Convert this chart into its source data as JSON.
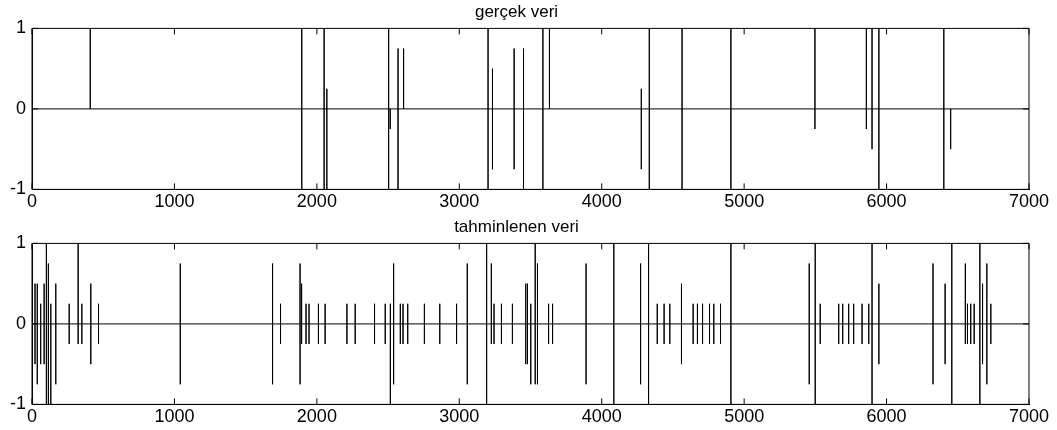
{
  "chart_data": [
    {
      "type": "line",
      "title": "gerçek veri",
      "color": "#000000",
      "marker": "none",
      "line_style": "solid",
      "grid": false,
      "xlim": [
        0,
        7000
      ],
      "xticks": [
        0,
        1000,
        2000,
        3000,
        4000,
        5000,
        6000,
        7000
      ],
      "ylim": [
        -1,
        1
      ],
      "yticks": [
        -1,
        0,
        1
      ],
      "x": [
        0,
        409,
        409,
        409,
        1894,
        1894,
        1894,
        1894,
        2051,
        2051,
        2051,
        2051,
        2070,
        2070,
        2070,
        2070,
        2504,
        2504,
        2504,
        2504,
        2515,
        2515,
        2515,
        2570,
        2570,
        2570,
        2570,
        2609,
        2609,
        2609,
        3202,
        3202,
        3202,
        3202,
        3233,
        3233,
        3233,
        3233,
        3385,
        3385,
        3385,
        3385,
        3451,
        3451,
        3451,
        3451,
        3587,
        3587,
        3587,
        3587,
        3633,
        3633,
        3633,
        4278,
        4278,
        4278,
        4278,
        4334,
        4334,
        4334,
        4334,
        4564,
        4564,
        4564,
        4564,
        4907,
        4907,
        4907,
        4907,
        5497,
        5497,
        5497,
        5497,
        5858,
        5858,
        5858,
        5858,
        5898,
        5898,
        5898,
        5898,
        5946,
        5946,
        5946,
        5946,
        6402,
        6402,
        6402,
        6402,
        6450,
        6450,
        6450,
        7000
      ],
      "values": [
        0,
        0,
        1,
        0,
        0,
        1,
        -1,
        0,
        0,
        1,
        -1,
        0,
        0,
        0.25,
        -1,
        0,
        0,
        1,
        -1,
        0,
        0,
        -0.25,
        0,
        0,
        0.75,
        -1,
        0,
        0,
        0.75,
        0,
        0,
        1,
        -1,
        0,
        0,
        0.5,
        -0.75,
        0,
        0,
        0.75,
        -0.75,
        0,
        0,
        0.75,
        -1,
        0,
        0,
        1,
        -1,
        0,
        0,
        1,
        0,
        0,
        0.25,
        -0.75,
        0,
        0,
        1,
        -1,
        0,
        0,
        1,
        -1,
        0,
        0,
        1,
        -1,
        0,
        0,
        1,
        -0.25,
        0,
        0,
        1,
        -0.25,
        0,
        0,
        1,
        -0.5,
        0,
        0,
        1,
        -1,
        0,
        0,
        1,
        -1,
        0,
        0,
        -0.5,
        0,
        0
      ]
    },
    {
      "type": "line",
      "title": "tahminlenen veri",
      "color": "#000000",
      "marker": "none",
      "line_style": "solid",
      "grid": false,
      "xlim": [
        0,
        7000
      ],
      "xticks": [
        0,
        1000,
        2000,
        3000,
        4000,
        5000,
        6000,
        7000
      ],
      "ylim": [
        -1,
        1
      ],
      "yticks": [
        -1,
        0,
        1
      ],
      "x": [
        0,
        2,
        2,
        2,
        2,
        21,
        21,
        21,
        21,
        37,
        37,
        37,
        37,
        61,
        61,
        61,
        61,
        85,
        85,
        85,
        85,
        101,
        101,
        101,
        101,
        115,
        115,
        115,
        115,
        132,
        132,
        132,
        132,
        167,
        167,
        167,
        167,
        261,
        261,
        261,
        261,
        324,
        324,
        324,
        324,
        350,
        350,
        350,
        350,
        413,
        413,
        413,
        413,
        467,
        467,
        467,
        467,
        1041,
        1041,
        1041,
        1041,
        1689,
        1689,
        1689,
        1689,
        1745,
        1745,
        1745,
        1745,
        1882,
        1882,
        1882,
        1882,
        1893,
        1893,
        1893,
        1893,
        1924,
        1924,
        1924,
        1924,
        1945,
        1945,
        1945,
        1945,
        2011,
        2011,
        2011,
        2011,
        2058,
        2058,
        2058,
        2058,
        2211,
        2211,
        2211,
        2211,
        2269,
        2269,
        2269,
        2269,
        2405,
        2405,
        2405,
        2405,
        2480,
        2480,
        2480,
        2480,
        2516,
        2516,
        2516,
        2516,
        2539,
        2539,
        2539,
        2539,
        2586,
        2586,
        2586,
        2586,
        2605,
        2605,
        2605,
        2605,
        2638,
        2638,
        2638,
        2638,
        2755,
        2755,
        2755,
        2755,
        2863,
        2863,
        2863,
        2863,
        2981,
        2981,
        2981,
        2981,
        3056,
        3056,
        3056,
        3056,
        3192,
        3192,
        3192,
        3192,
        3225,
        3225,
        3225,
        3225,
        3244,
        3244,
        3244,
        3244,
        3296,
        3296,
        3296,
        3296,
        3373,
        3373,
        3373,
        3373,
        3467,
        3467,
        3467,
        3467,
        3479,
        3479,
        3479,
        3479,
        3502,
        3502,
        3502,
        3502,
        3533,
        3533,
        3533,
        3533,
        3549,
        3549,
        3549,
        3549,
        3627,
        3627,
        3627,
        3627,
        3655,
        3655,
        3655,
        3655,
        3890,
        3890,
        3890,
        3890,
        4085,
        4085,
        4085,
        4085,
        4273,
        4273,
        4273,
        4273,
        4329,
        4329,
        4329,
        4329,
        4390,
        4390,
        4390,
        4390,
        4438,
        4438,
        4438,
        4438,
        4478,
        4478,
        4478,
        4478,
        4560,
        4560,
        4560,
        4560,
        4642,
        4642,
        4642,
        4642,
        4672,
        4672,
        4672,
        4672,
        4708,
        4708,
        4708,
        4708,
        4757,
        4757,
        4757,
        4757,
        4787,
        4787,
        4787,
        4787,
        4834,
        4834,
        4834,
        4834,
        4907,
        4907,
        4907,
        4907,
        5457,
        5457,
        5457,
        5457,
        5499,
        5499,
        5499,
        5499,
        5534,
        5534,
        5534,
        5534,
        5664,
        5664,
        5664,
        5664,
        5692,
        5692,
        5692,
        5692,
        5734,
        5734,
        5734,
        5734,
        5769,
        5769,
        5769,
        5769,
        5828,
        5828,
        5828,
        5828,
        5875,
        5875,
        5875,
        5875,
        5898,
        5898,
        5898,
        5898,
        5946,
        5946,
        5946,
        5946,
        6326,
        6326,
        6326,
        6326,
        6411,
        6411,
        6411,
        6411,
        6458,
        6458,
        6458,
        6458,
        6553,
        6553,
        6553,
        6553,
        6568,
        6568,
        6568,
        6568,
        6591,
        6591,
        6591,
        6591,
        6615,
        6615,
        6615,
        6615,
        6655,
        6655,
        6655,
        6655,
        6674,
        6674,
        6674,
        6674,
        6704,
        6704,
        6704,
        6704,
        6732,
        6732,
        6732,
        6732,
        7000
      ],
      "values": [
        0,
        0,
        0.25,
        -0.25,
        0,
        0,
        0.5,
        -0.5,
        0,
        0,
        0.5,
        -0.75,
        0,
        0,
        0.25,
        -0.5,
        0,
        0,
        0.5,
        -0.5,
        0,
        0,
        1,
        -1,
        0,
        0,
        0.75,
        -1,
        0,
        0,
        0.25,
        -1,
        0,
        0,
        0.5,
        -0.75,
        0,
        0,
        0.25,
        -0.25,
        0,
        0,
        1,
        -0.25,
        0,
        0,
        0.25,
        -0.25,
        0,
        0,
        0.5,
        -0.5,
        0,
        0,
        0.25,
        -0.25,
        0,
        0,
        0.75,
        -0.75,
        0,
        0,
        0.75,
        -0.75,
        0,
        0,
        0.25,
        -0.25,
        0,
        0,
        0.75,
        -0.75,
        0,
        0,
        0.5,
        -0.25,
        0,
        0,
        0.25,
        -0.25,
        0,
        0,
        0.25,
        -0.25,
        0,
        0,
        0.25,
        -0.25,
        0,
        0,
        0.25,
        -0.25,
        0,
        0,
        0.25,
        -0.25,
        0,
        0,
        0.25,
        -0.25,
        0,
        0,
        0.25,
        -0.25,
        0,
        0,
        0.25,
        -0.25,
        0,
        0,
        0.25,
        -1,
        0,
        0,
        0.75,
        -0.75,
        0,
        0,
        0.25,
        -0.25,
        0,
        0,
        0.25,
        -0.25,
        0,
        0,
        0.25,
        -0.25,
        0,
        0,
        0.25,
        -0.25,
        0,
        0,
        0.25,
        -0.25,
        0,
        0,
        0.25,
        -0.25,
        0,
        0,
        0.75,
        -0.75,
        0,
        0,
        1,
        -1,
        0,
        0,
        0.75,
        -0.25,
        0,
        0,
        0.25,
        -0.25,
        0,
        0,
        0.25,
        -0.25,
        0,
        0,
        0.25,
        -0.25,
        0,
        0,
        0.5,
        -0.5,
        0,
        0,
        0.5,
        -0.5,
        0,
        0,
        0.25,
        -0.75,
        0,
        0,
        1,
        -0.75,
        0,
        0,
        0.75,
        -0.75,
        0,
        0,
        0.25,
        -0.25,
        0,
        0,
        0.25,
        -0.25,
        0,
        0,
        0.75,
        -0.75,
        0,
        0,
        1,
        -1,
        0,
        0,
        0.75,
        -0.75,
        0,
        0,
        1,
        -1,
        0,
        0,
        0.25,
        -0.25,
        0,
        0,
        0.25,
        -0.25,
        0,
        0,
        0.25,
        -0.25,
        0,
        0,
        0.5,
        -0.5,
        0,
        0,
        0.25,
        -0.25,
        0,
        0,
        0.25,
        -0.25,
        0,
        0,
        0.25,
        -0.25,
        0,
        0,
        0.25,
        -0.25,
        0,
        0,
        0.25,
        -0.25,
        0,
        0,
        0.25,
        -0.25,
        0,
        0,
        1,
        -1,
        0,
        0,
        0.75,
        -0.75,
        0,
        0,
        1,
        -1,
        0,
        0,
        0.25,
        -0.25,
        0,
        0,
        0.25,
        -0.25,
        0,
        0,
        0.25,
        -0.25,
        0,
        0,
        0.25,
        -0.25,
        0,
        0,
        0.25,
        -0.25,
        0,
        0,
        0.25,
        -0.25,
        0,
        0,
        0.25,
        -0.25,
        0,
        0,
        1,
        -1,
        0,
        0,
        0.5,
        -0.5,
        0,
        0,
        0.75,
        -0.75,
        0,
        0,
        0.5,
        -0.5,
        0,
        0,
        1,
        -1,
        0,
        0,
        0.75,
        -0.25,
        0,
        0,
        0.25,
        -0.25,
        0,
        0,
        0.25,
        -0.25,
        0,
        0,
        0.25,
        -0.25,
        0,
        0,
        1,
        -1,
        0,
        0,
        0.5,
        -0.5,
        0,
        0,
        0.75,
        -0.75,
        0,
        0,
        0.25,
        -0.25,
        0,
        0
      ]
    }
  ]
}
